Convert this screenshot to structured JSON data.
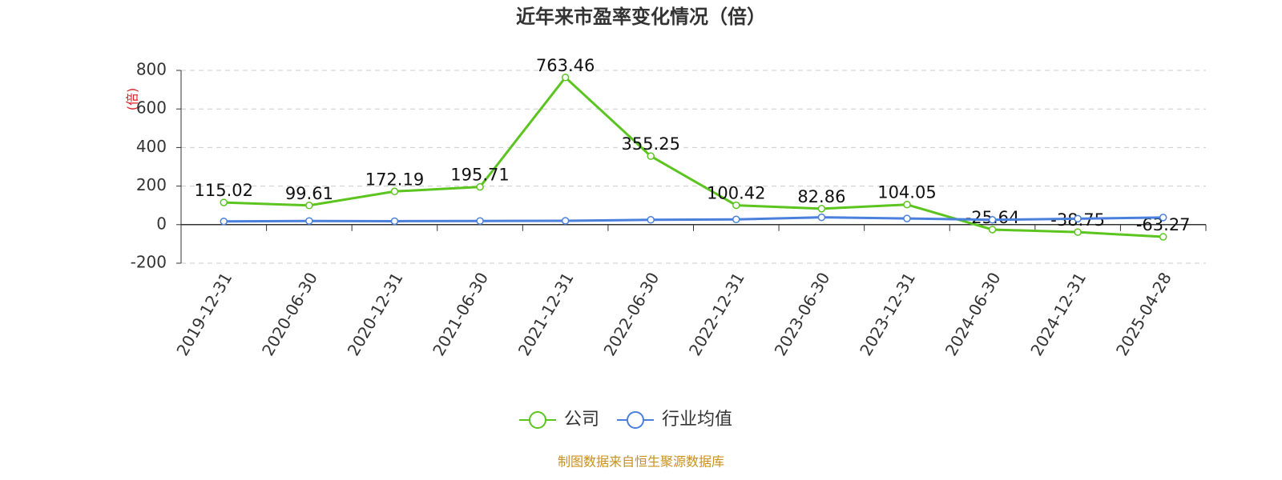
{
  "chart_data": {
    "type": "line",
    "title": "近年来市盈率变化情况（倍）",
    "ylabel": "(倍)",
    "categories": [
      "2019-12-31",
      "2020-06-30",
      "2020-12-31",
      "2021-06-30",
      "2021-12-31",
      "2022-06-30",
      "2022-12-31",
      "2023-06-30",
      "2023-12-31",
      "2024-06-30",
      "2024-12-31",
      "2025-04-28"
    ],
    "series": [
      {
        "name": "公司",
        "color": "#5bc41f",
        "values": [
          115.02,
          99.61,
          172.19,
          195.71,
          763.46,
          355.25,
          100.42,
          82.86,
          104.05,
          -25.64,
          -38.75,
          -63.27
        ]
      },
      {
        "name": "行业均值",
        "color": "#4a7fdc",
        "values": [
          17,
          19,
          18,
          19,
          20,
          25,
          27,
          38,
          32,
          25,
          31,
          37
        ]
      }
    ],
    "ylim": [
      -200,
      800
    ],
    "yticks": [
      -200,
      0,
      200,
      400,
      600,
      800
    ],
    "grid": true,
    "source": "制图数据来自恒生聚源数据库"
  }
}
